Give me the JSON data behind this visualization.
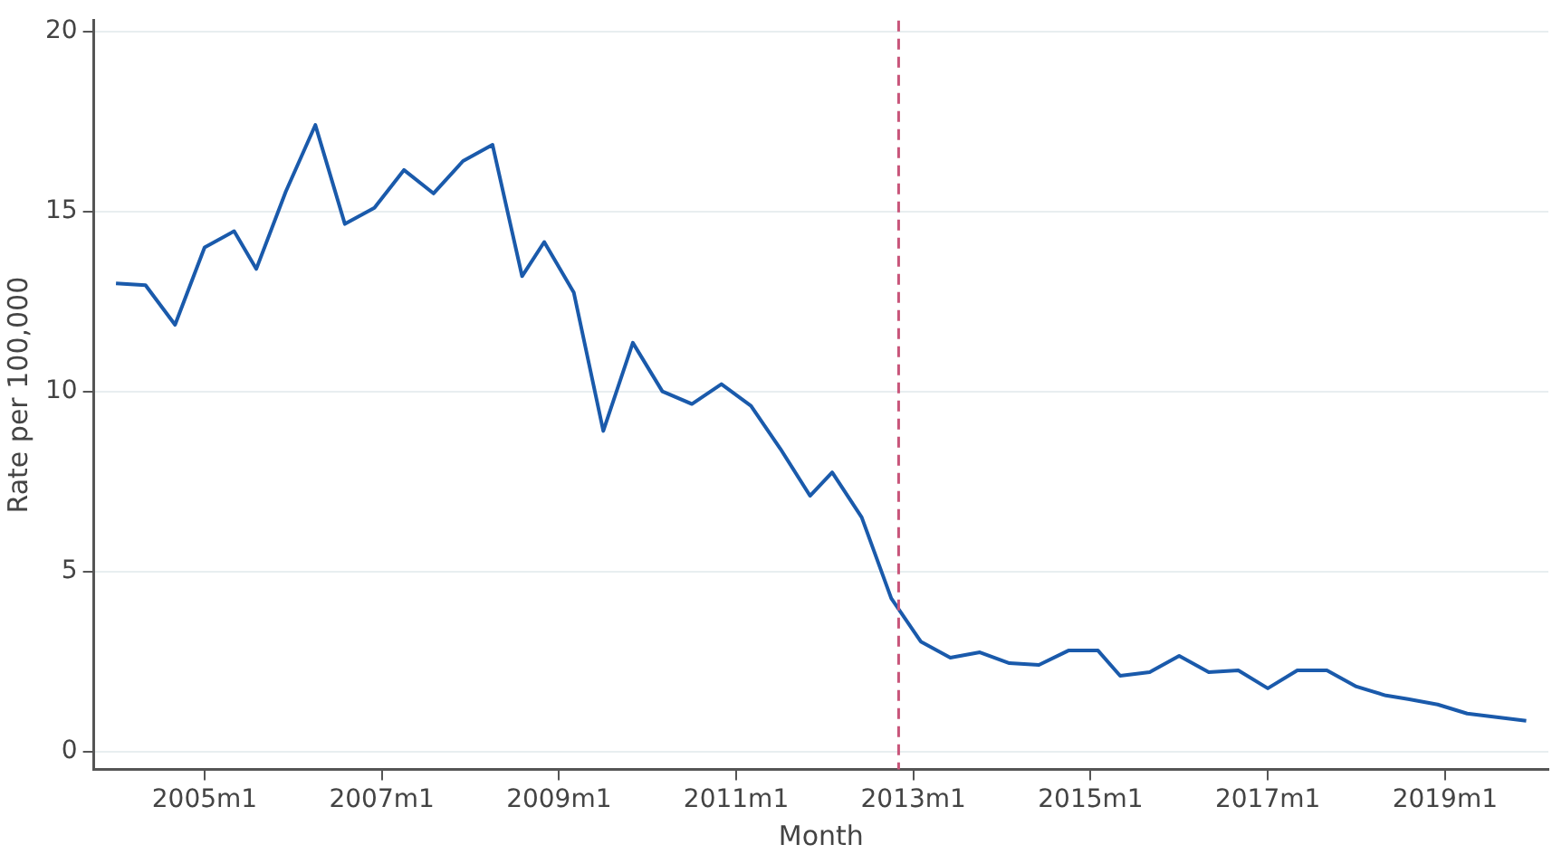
{
  "chart_data": {
    "type": "line",
    "xlabel": "Month",
    "ylabel": "Rate per 100,000",
    "x": [
      "2004-01",
      "2004-05",
      "2004-09",
      "2005-01",
      "2005-05",
      "2005-08",
      "2005-12",
      "2006-04",
      "2006-08",
      "2006-12",
      "2007-04",
      "2007-08",
      "2007-12",
      "2008-04",
      "2008-08",
      "2008-11",
      "2009-03",
      "2009-07",
      "2009-11",
      "2010-03",
      "2010-07",
      "2010-11",
      "2011-03",
      "2011-07",
      "2011-11",
      "2012-02",
      "2012-06",
      "2012-10",
      "2013-02",
      "2013-06",
      "2013-10",
      "2014-02",
      "2014-06",
      "2014-10",
      "2015-02",
      "2015-05",
      "2015-09",
      "2016-01",
      "2016-05",
      "2016-09",
      "2017-01",
      "2017-05",
      "2017-09",
      "2018-01",
      "2018-05",
      "2018-08",
      "2018-12",
      "2019-04",
      "2019-08",
      "2019-12"
    ],
    "series": [
      {
        "color": "#1a5aab",
        "values": [
          13.0,
          12.95,
          11.85,
          14.0,
          14.45,
          13.4,
          15.55,
          17.4,
          14.65,
          15.1,
          16.15,
          15.5,
          16.4,
          16.85,
          13.2,
          14.15,
          12.75,
          8.9,
          11.35,
          10.0,
          9.65,
          10.2,
          9.6,
          8.4,
          7.1,
          7.75,
          6.5,
          4.25,
          3.05,
          2.6,
          2.75,
          2.45,
          2.4,
          2.8,
          2.8,
          2.1,
          2.2,
          2.65,
          2.2,
          2.25,
          1.75,
          2.25,
          2.25,
          1.8,
          1.55,
          1.45,
          1.3,
          1.05,
          0.95,
          0.85
        ]
      }
    ],
    "xlim": [
      "2003-10",
      "2020-03"
    ],
    "xticks": [
      {
        "value": "2005-01",
        "label": "2005m1"
      },
      {
        "value": "2007-01",
        "label": "2007m1"
      },
      {
        "value": "2009-01",
        "label": "2009m1"
      },
      {
        "value": "2011-01",
        "label": "2011m1"
      },
      {
        "value": "2013-01",
        "label": "2013m1"
      },
      {
        "value": "2015-01",
        "label": "2015m1"
      },
      {
        "value": "2017-01",
        "label": "2017m1"
      },
      {
        "value": "2019-01",
        "label": "2019m1"
      }
    ],
    "ylim": [
      -0.5,
      20.3
    ],
    "yticks": [
      0,
      5,
      10,
      15,
      20
    ],
    "ref_lines": [
      {
        "axis": "x",
        "value": "2012-11",
        "color": "#c8557a",
        "line_style": "dashed"
      }
    ],
    "grid": "y",
    "legend": false,
    "marker": "none",
    "line_style": "solid"
  }
}
